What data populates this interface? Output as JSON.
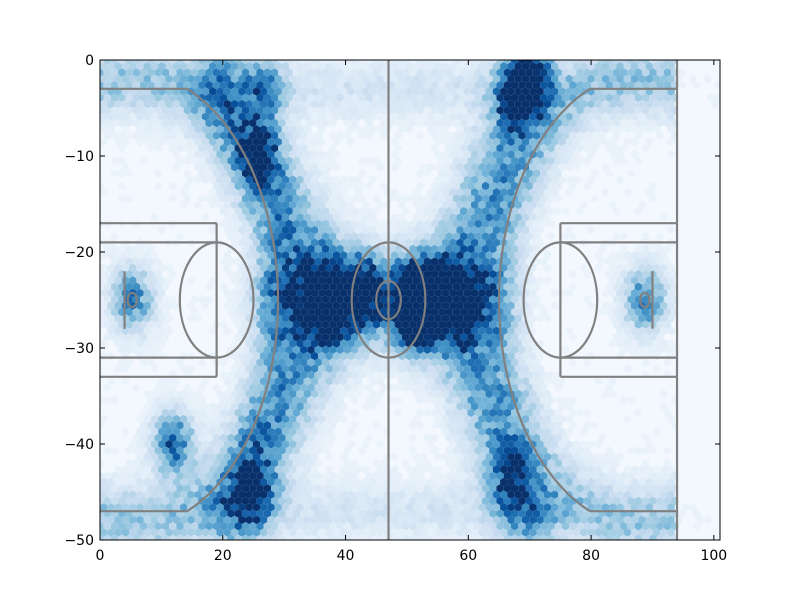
{
  "chart_data": {
    "type": "heatmap",
    "subtype": "hexbin",
    "title": "",
    "xlabel": "",
    "ylabel": "",
    "xlim": [
      0,
      101
    ],
    "ylim": [
      -50,
      0
    ],
    "x_ticks": [
      0,
      20,
      40,
      60,
      80,
      100
    ],
    "y_ticks": [
      0,
      -10,
      -20,
      -30,
      -40,
      -50
    ],
    "x_tick_labels": [
      "0",
      "20",
      "40",
      "60",
      "80",
      "100"
    ],
    "y_tick_labels": [
      "0",
      "−10",
      "−20",
      "−30",
      "−40",
      "−50"
    ],
    "grid": false,
    "legend": "none",
    "colormap": "Blues",
    "colors": {
      "low": "#f7fbff",
      "high": "#08306b",
      "court": "#808080"
    },
    "density_hotspots": [
      {
        "x": 51,
        "y": -27,
        "intensity": 1.0
      },
      {
        "x": 51,
        "y": -24,
        "intensity": 0.9
      },
      {
        "x": 43,
        "y": -24,
        "intensity": 0.85
      },
      {
        "x": 25,
        "y": -45,
        "intensity": 0.85
      },
      {
        "x": 68,
        "y": -4,
        "intensity": 0.85
      },
      {
        "x": 70,
        "y": -2,
        "intensity": 0.75
      },
      {
        "x": 26,
        "y": -10,
        "intensity": 0.65
      },
      {
        "x": 12,
        "y": -40,
        "intensity": 0.7
      },
      {
        "x": 36,
        "y": -25,
        "intensity": 0.6
      },
      {
        "x": 58,
        "y": -25,
        "intensity": 0.6
      },
      {
        "x": 27,
        "y": -3,
        "intensity": 0.5
      },
      {
        "x": 67,
        "y": -44,
        "intensity": 0.55
      },
      {
        "x": 5.25,
        "y": -25,
        "intensity": 0.6
      },
      {
        "x": 88.75,
        "y": -25,
        "intensity": 0.6
      }
    ],
    "density_bands": [
      {
        "from": [
          20,
          -3
        ],
        "to": [
          38,
          -25
        ],
        "intensity": 0.45
      },
      {
        "from": [
          38,
          -25
        ],
        "to": [
          22,
          -47
        ],
        "intensity": 0.45
      },
      {
        "from": [
          70,
          -3
        ],
        "to": [
          56,
          -25
        ],
        "intensity": 0.45
      },
      {
        "from": [
          56,
          -25
        ],
        "to": [
          70,
          -47
        ],
        "intensity": 0.45
      },
      {
        "from": [
          30,
          -25
        ],
        "to": [
          62,
          -25
        ],
        "intensity": 0.5
      }
    ],
    "court": {
      "length": 94,
      "width": 50,
      "center_line_x": 47,
      "center_circle": {
        "x": 47,
        "y": -25,
        "outer_r": 6,
        "inner_r": 2
      },
      "baseline_left_x": 0,
      "baseline_right_x": 94,
      "three_point_radius": 23.75,
      "three_point_corner_y": [
        -3,
        -47
      ],
      "lane_outer": [
        -17,
        -33
      ],
      "lane_inner": [
        -19,
        -31
      ],
      "free_throw_distance": 19,
      "free_throw_circle_r": 6,
      "backboard_x_left": 4,
      "backboard_x_right": 90,
      "backboard_y": [
        -22,
        -28
      ],
      "hoop": {
        "left_x": 5.25,
        "right_x": 88.75,
        "y": -25,
        "r": 0.75
      }
    }
  }
}
